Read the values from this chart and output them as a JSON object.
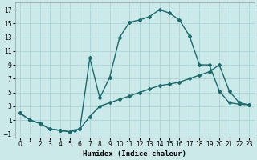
{
  "xlabel": "Humidex (Indice chaleur)",
  "bg_color": "#cce9ea",
  "grid_color": "#aad4d6",
  "line_color": "#1a6b6b",
  "xlim": [
    -0.5,
    23.5
  ],
  "ylim": [
    -1.5,
    18
  ],
  "xticks": [
    0,
    1,
    2,
    3,
    4,
    5,
    6,
    7,
    8,
    9,
    10,
    11,
    12,
    13,
    14,
    15,
    16,
    17,
    18,
    19,
    20,
    21,
    22,
    23
  ],
  "yticks": [
    -1,
    1,
    3,
    5,
    7,
    9,
    11,
    13,
    15,
    17
  ],
  "curve1_x": [
    0,
    1,
    2,
    3,
    4,
    5,
    5.5,
    6,
    7,
    8,
    9,
    10,
    11,
    12,
    13,
    14,
    15,
    16,
    17,
    18,
    19,
    20,
    21,
    22,
    23
  ],
  "curve1_y": [
    2.0,
    1.0,
    0.5,
    -0.3,
    -0.5,
    -0.7,
    -0.5,
    -0.3,
    10.0,
    4.2,
    7.2,
    13.0,
    15.2,
    15.5,
    16.0,
    17.0,
    16.5,
    15.5,
    13.2,
    9.0,
    9.0,
    5.2,
    3.5,
    3.3,
    3.2
  ],
  "curve2_x": [
    0,
    1,
    2,
    3,
    4,
    5,
    6,
    7,
    8,
    9,
    10,
    11,
    12,
    13,
    14,
    15,
    16,
    17,
    18,
    19,
    20,
    21,
    22,
    23
  ],
  "curve2_y": [
    2.0,
    1.0,
    0.5,
    -0.3,
    -0.5,
    -0.7,
    -0.3,
    1.5,
    3.0,
    3.5,
    4.0,
    4.5,
    5.0,
    5.5,
    6.0,
    6.2,
    6.5,
    7.0,
    7.5,
    8.0,
    9.0,
    5.2,
    3.5,
    3.2
  ],
  "marker": "D",
  "markersize": 2,
  "linewidth": 1.0,
  "tick_fontsize": 5.5,
  "xlabel_fontsize": 6.5
}
